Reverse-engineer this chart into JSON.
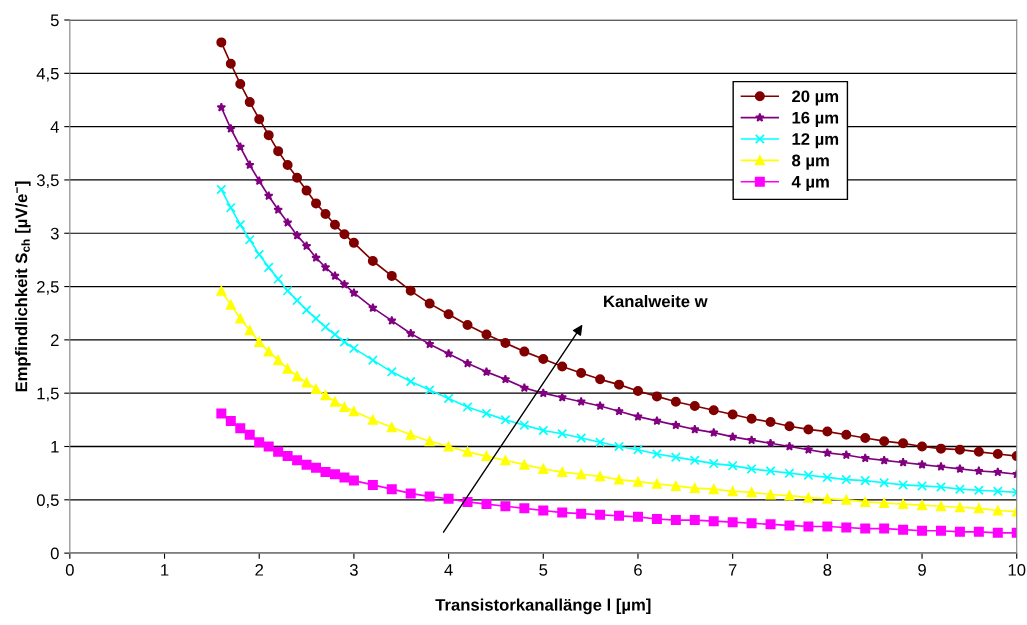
{
  "chart_data": {
    "type": "line",
    "xlabel": "Transistorkanallänge l [µm]",
    "ylabel": "Empfindlichkeit S$_{ch}$ [µV/e$^{−}$]",
    "x": [
      1.6,
      1.7,
      1.8,
      1.9,
      2.0,
      2.1,
      2.2,
      2.3,
      2.4,
      2.5,
      2.6,
      2.7,
      2.8,
      2.9,
      3.0,
      3.2,
      3.4,
      3.6,
      3.8,
      4.0,
      4.2,
      4.4,
      4.6,
      4.8,
      5.0,
      5.2,
      5.4,
      5.6,
      5.8,
      6.0,
      6.2,
      6.4,
      6.6,
      6.8,
      7.0,
      7.2,
      7.4,
      7.6,
      7.8,
      8.0,
      8.2,
      8.4,
      8.6,
      8.8,
      9.0,
      9.2,
      9.4,
      9.6,
      9.8,
      10.0
    ],
    "series": [
      {
        "name": "20 µm",
        "color": "#800000",
        "marker": "circle",
        "values": [
          4.79,
          4.59,
          4.4,
          4.23,
          4.07,
          3.92,
          3.77,
          3.64,
          3.52,
          3.4,
          3.28,
          3.18,
          3.08,
          2.99,
          2.91,
          2.74,
          2.6,
          2.46,
          2.34,
          2.24,
          2.14,
          2.05,
          1.97,
          1.89,
          1.82,
          1.75,
          1.69,
          1.63,
          1.58,
          1.52,
          1.47,
          1.42,
          1.38,
          1.34,
          1.3,
          1.26,
          1.23,
          1.19,
          1.16,
          1.14,
          1.11,
          1.08,
          1.05,
          1.03,
          1.0,
          0.98,
          0.97,
          0.95,
          0.93,
          0.91
        ]
      },
      {
        "name": "16 µm",
        "color": "#800080",
        "marker": "star",
        "values": [
          4.18,
          3.98,
          3.81,
          3.64,
          3.49,
          3.35,
          3.22,
          3.1,
          2.98,
          2.88,
          2.77,
          2.68,
          2.6,
          2.52,
          2.44,
          2.3,
          2.18,
          2.06,
          1.96,
          1.87,
          1.78,
          1.7,
          1.63,
          1.55,
          1.5,
          1.46,
          1.42,
          1.38,
          1.33,
          1.28,
          1.24,
          1.2,
          1.16,
          1.13,
          1.09,
          1.06,
          1.03,
          1.0,
          0.97,
          0.94,
          0.92,
          0.89,
          0.87,
          0.85,
          0.83,
          0.81,
          0.79,
          0.77,
          0.76,
          0.74
        ]
      },
      {
        "name": "12 µm",
        "color": "#00ffff",
        "marker": "cross",
        "values": [
          3.41,
          3.24,
          3.08,
          2.94,
          2.8,
          2.68,
          2.57,
          2.46,
          2.37,
          2.28,
          2.2,
          2.12,
          2.05,
          1.98,
          1.92,
          1.81,
          1.7,
          1.61,
          1.53,
          1.45,
          1.37,
          1.31,
          1.25,
          1.2,
          1.15,
          1.12,
          1.08,
          1.04,
          1.0,
          0.97,
          0.93,
          0.9,
          0.87,
          0.84,
          0.82,
          0.79,
          0.77,
          0.75,
          0.73,
          0.71,
          0.69,
          0.68,
          0.66,
          0.64,
          0.63,
          0.62,
          0.6,
          0.59,
          0.58,
          0.57
        ]
      },
      {
        "name": "8 µm",
        "color": "#ffff00",
        "marker": "triangle",
        "values": [
          2.46,
          2.33,
          2.2,
          2.09,
          1.98,
          1.89,
          1.81,
          1.73,
          1.66,
          1.6,
          1.54,
          1.48,
          1.42,
          1.37,
          1.33,
          1.25,
          1.18,
          1.11,
          1.05,
          1.0,
          0.95,
          0.91,
          0.87,
          0.83,
          0.79,
          0.76,
          0.74,
          0.72,
          0.69,
          0.67,
          0.65,
          0.63,
          0.61,
          0.6,
          0.58,
          0.57,
          0.55,
          0.54,
          0.52,
          0.51,
          0.5,
          0.48,
          0.47,
          0.46,
          0.45,
          0.44,
          0.43,
          0.42,
          0.4,
          0.39
        ]
      },
      {
        "name": "4 µm",
        "color": "#ff00ff",
        "marker": "square",
        "values": [
          1.31,
          1.24,
          1.17,
          1.11,
          1.04,
          1.0,
          0.95,
          0.91,
          0.87,
          0.83,
          0.8,
          0.76,
          0.74,
          0.71,
          0.68,
          0.64,
          0.6,
          0.56,
          0.53,
          0.51,
          0.48,
          0.46,
          0.44,
          0.42,
          0.4,
          0.38,
          0.37,
          0.36,
          0.35,
          0.34,
          0.32,
          0.31,
          0.31,
          0.3,
          0.29,
          0.28,
          0.27,
          0.26,
          0.25,
          0.25,
          0.24,
          0.23,
          0.23,
          0.22,
          0.21,
          0.21,
          0.2,
          0.2,
          0.19,
          0.19
        ]
      }
    ],
    "xlim": [
      0,
      10
    ],
    "xticks": [
      0,
      1,
      2,
      3,
      4,
      5,
      6,
      7,
      8,
      9,
      10
    ],
    "ylim": [
      0,
      5
    ],
    "yticks": [
      0,
      {
        "value": 0.5,
        "label": "0,5"
      },
      1,
      {
        "value": 1.5,
        "label": "1,5"
      },
      2,
      {
        "value": 2.5,
        "label": "2,5"
      },
      3,
      {
        "value": 3.5,
        "label": "3,5"
      },
      4,
      {
        "value": 4.5,
        "label": "4,5"
      },
      5
    ],
    "grid": "y",
    "legend": "top right",
    "line_style": "solid",
    "annotations": [
      "Kanalweite w"
    ]
  }
}
